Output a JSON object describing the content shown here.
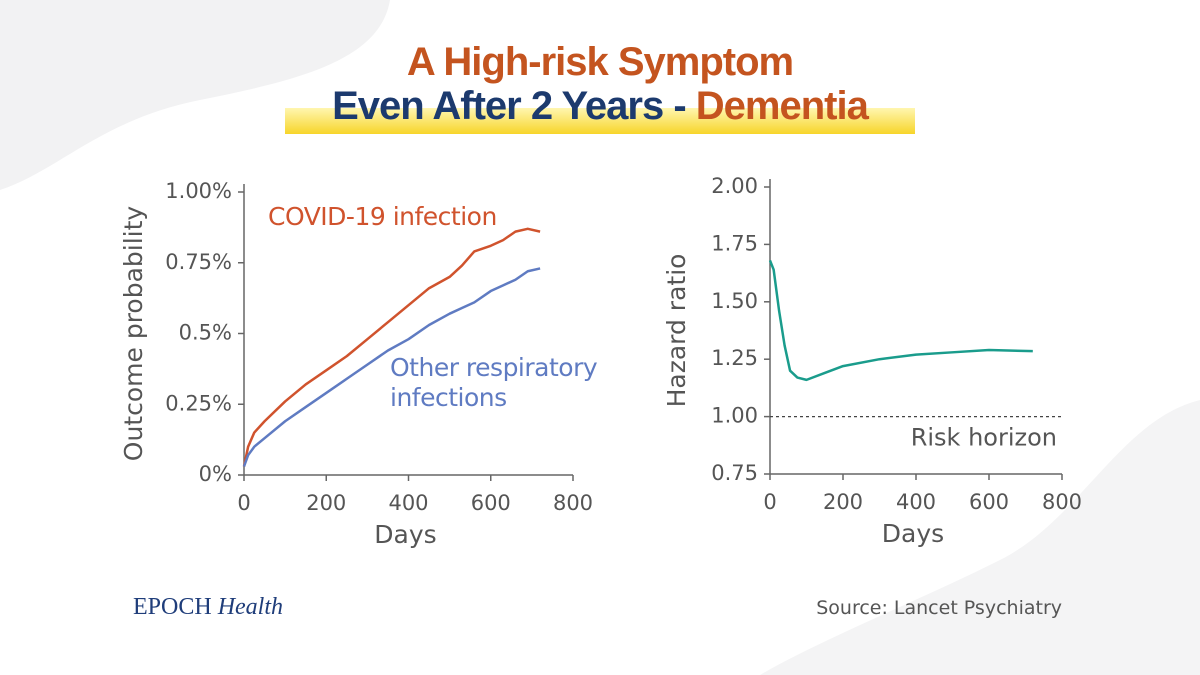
{
  "header": {
    "title_line1": "A High-risk Symptom",
    "title_line2_part1": "Even After 2 Years -",
    "title_line2_part2": "Dementia"
  },
  "chart_data": [
    {
      "type": "line",
      "xlabel": "Days",
      "ylabel": "Outcome probability",
      "x": [
        0,
        10,
        25,
        50,
        100,
        150,
        200,
        250,
        300,
        350,
        400,
        450,
        500,
        530,
        560,
        600,
        630,
        660,
        690,
        720
      ],
      "series": [
        {
          "name": "COVID-19 infection",
          "color": "#d0532d",
          "values": [
            0.03,
            0.1,
            0.15,
            0.19,
            0.26,
            0.32,
            0.37,
            0.42,
            0.48,
            0.54,
            0.6,
            0.66,
            0.7,
            0.74,
            0.79,
            0.81,
            0.83,
            0.86,
            0.87,
            0.86
          ]
        },
        {
          "name": "Other respiratory infections",
          "color": "#5f7bc2",
          "values": [
            0.03,
            0.07,
            0.1,
            0.13,
            0.19,
            0.24,
            0.29,
            0.34,
            0.39,
            0.44,
            0.48,
            0.53,
            0.57,
            0.59,
            0.61,
            0.65,
            0.67,
            0.69,
            0.72,
            0.73
          ]
        }
      ],
      "xlim": [
        0,
        800
      ],
      "xticks": [
        0,
        200,
        400,
        600,
        800
      ],
      "ylim": [
        0,
        1
      ],
      "yticks": [
        {
          "value": 0,
          "label": "0%"
        },
        {
          "value": 0.25,
          "label": "0.25%"
        },
        {
          "value": 0.5,
          "label": "0.5%"
        },
        {
          "value": 0.75,
          "label": "0.75%"
        },
        {
          "value": 1,
          "label": "1.00%"
        }
      ]
    },
    {
      "type": "line",
      "xlabel": "Days",
      "ylabel": "Hazard ratio",
      "x": [
        0,
        10,
        25,
        40,
        55,
        75,
        100,
        150,
        200,
        300,
        400,
        500,
        600,
        720
      ],
      "series": [
        {
          "name": "Hazard ratio",
          "color": "#1a9c8c",
          "values": [
            1.68,
            1.64,
            1.46,
            1.31,
            1.2,
            1.17,
            1.16,
            1.19,
            1.22,
            1.25,
            1.27,
            1.28,
            1.29,
            1.285
          ]
        }
      ],
      "xlim": [
        0,
        800
      ],
      "xticks": [
        0,
        200,
        400,
        600,
        800
      ],
      "ylim": [
        0.75,
        2
      ],
      "yticks": [
        0.75,
        {
          "value": 1,
          "label": "1.00"
        },
        1.25,
        {
          "value": 1.5,
          "label": "1.50"
        },
        1.75,
        {
          "value": 2,
          "label": "2.00"
        }
      ],
      "reference_line": {
        "value": 1,
        "label": "Risk horizon"
      }
    }
  ],
  "footer": {
    "brand": "EPOCH",
    "brand_sub": "Health",
    "source": "Source: Lancet Psychiatry"
  }
}
